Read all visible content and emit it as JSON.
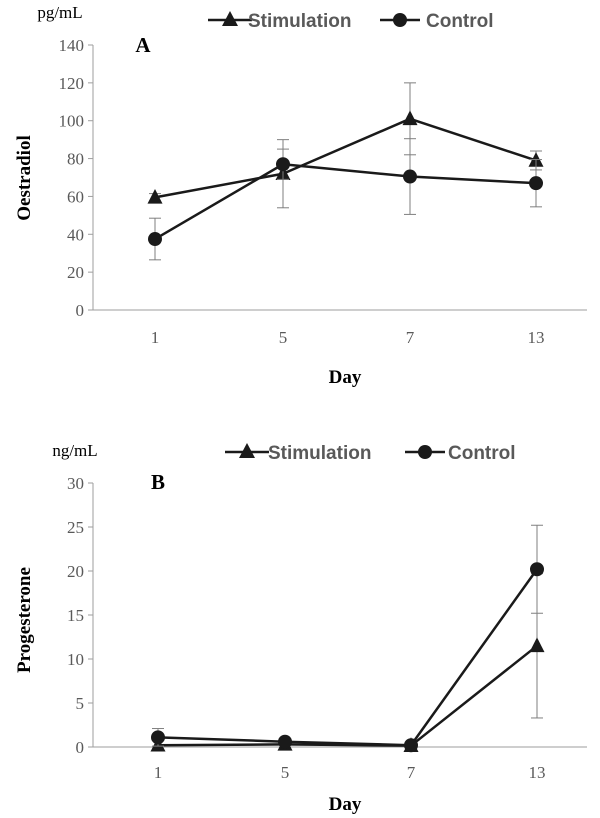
{
  "chart_data": [
    {
      "type": "line",
      "panel_label": "A",
      "unit": "pg/mL",
      "ylabel": "Oestradiol",
      "xlabel": "Day",
      "categories": [
        "1",
        "5",
        "7",
        "13"
      ],
      "ylim": [
        0,
        140
      ],
      "yticks": [
        "0",
        "20",
        "40",
        "60",
        "80",
        "100",
        "120",
        "140"
      ],
      "grid": false,
      "legend_position": "top",
      "series": [
        {
          "name": "Stimulation",
          "marker": "triangle",
          "values": [
            59.5,
            72,
            101,
            79
          ],
          "error": [
            2,
            18,
            19,
            5
          ]
        },
        {
          "name": "Control",
          "marker": "circle",
          "values": [
            37.5,
            77,
            70.5,
            67
          ],
          "error": [
            11,
            8,
            20,
            12.5
          ]
        }
      ]
    },
    {
      "type": "line",
      "panel_label": "B",
      "unit": "ng/mL",
      "ylabel": "Progesterone",
      "xlabel": "Day",
      "categories": [
        "1",
        "5",
        "7",
        "13"
      ],
      "ylim": [
        0,
        30
      ],
      "yticks": [
        "0",
        "5",
        "10",
        "15",
        "20",
        "25",
        "30"
      ],
      "grid": false,
      "legend_position": "top",
      "series": [
        {
          "name": "Stimulation",
          "marker": "triangle",
          "values": [
            0.2,
            0.3,
            0.15,
            11.5
          ],
          "error": [
            0,
            0,
            0,
            8.2
          ]
        },
        {
          "name": "Control",
          "marker": "circle",
          "values": [
            1.1,
            0.6,
            0.2,
            20.2
          ],
          "error": [
            1,
            0,
            0,
            5
          ]
        }
      ]
    }
  ],
  "colors": {
    "line": "#1a1a1a",
    "axis": "#9e9e9e",
    "tick_text": "#595959",
    "error_bar": "#7f7f7f"
  }
}
